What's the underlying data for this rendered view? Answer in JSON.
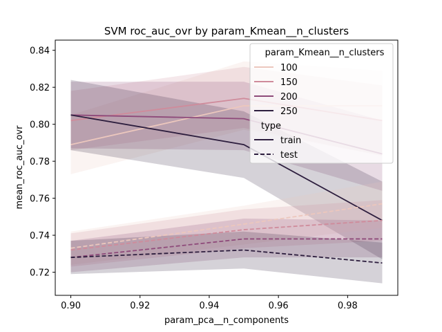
{
  "chart_data": {
    "type": "line",
    "title": "SVM roc_auc_ovr by param_Kmean__n_clusters",
    "xlabel": "param_pca__n_components",
    "ylabel": "mean_roc_auc_ovr",
    "x": [
      0.9,
      0.95,
      0.99
    ],
    "xlim": [
      0.8955,
      0.9945
    ],
    "ylim": [
      0.7075,
      0.8455
    ],
    "xticks": [
      0.9,
      0.92,
      0.94,
      0.96,
      0.98
    ],
    "xtick_labels": [
      "0.90",
      "0.92",
      "0.94",
      "0.96",
      "0.98"
    ],
    "yticks": [
      0.72,
      0.74,
      0.76,
      0.78,
      0.8,
      0.82,
      0.84
    ],
    "ytick_labels": [
      "0.72",
      "0.74",
      "0.76",
      "0.78",
      "0.80",
      "0.82",
      "0.84"
    ],
    "grid": false,
    "legend": {
      "placement": "top-right",
      "hue_title": "param_Kmean__n_clusters",
      "hue_entries": [
        {
          "label": "100",
          "color": "#ecc7bd"
        },
        {
          "label": "150",
          "color": "#cf8b9b"
        },
        {
          "label": "200",
          "color": "#8e4a7a"
        },
        {
          "label": "250",
          "color": "#2d1e3e"
        }
      ],
      "style_title": "type",
      "style_entries": [
        {
          "label": "train",
          "dash": "solid"
        },
        {
          "label": "test",
          "dash": "dashed"
        }
      ]
    },
    "series": [
      {
        "hue": "100",
        "type": "train",
        "color": "#ecc7bd",
        "values": [
          0.789,
          0.81,
          0.81
        ],
        "lower": [
          0.773,
          0.797,
          0.783
        ],
        "upper": [
          0.805,
          0.834,
          0.829
        ]
      },
      {
        "hue": "150",
        "type": "train",
        "color": "#cf8b9b",
        "values": [
          0.802,
          0.814,
          0.802
        ],
        "lower": [
          0.786,
          0.798,
          0.783
        ],
        "upper": [
          0.818,
          0.831,
          0.821
        ]
      },
      {
        "hue": "200",
        "type": "train",
        "color": "#8e4a7a",
        "values": [
          0.805,
          0.803,
          0.784
        ],
        "lower": [
          0.787,
          0.786,
          0.764
        ],
        "upper": [
          0.823,
          0.823,
          0.802
        ]
      },
      {
        "hue": "250",
        "type": "train",
        "color": "#2d1e3e",
        "values": [
          0.805,
          0.789,
          0.748
        ],
        "lower": [
          0.786,
          0.771,
          0.727
        ],
        "upper": [
          0.824,
          0.807,
          0.769
        ]
      },
      {
        "hue": "100",
        "type": "test",
        "color": "#ecc7bd",
        "values": [
          0.733,
          0.746,
          0.757
        ],
        "lower": [
          0.724,
          0.735,
          0.744
        ],
        "upper": [
          0.742,
          0.756,
          0.769
        ]
      },
      {
        "hue": "150",
        "type": "test",
        "color": "#cf8b9b",
        "values": [
          0.732,
          0.743,
          0.748
        ],
        "lower": [
          0.723,
          0.733,
          0.737
        ],
        "upper": [
          0.741,
          0.754,
          0.759
        ]
      },
      {
        "hue": "200",
        "type": "test",
        "color": "#8e4a7a",
        "values": [
          0.728,
          0.738,
          0.738
        ],
        "lower": [
          0.72,
          0.728,
          0.728
        ],
        "upper": [
          0.737,
          0.749,
          0.748
        ]
      },
      {
        "hue": "250",
        "type": "test",
        "color": "#2d1e3e",
        "values": [
          0.728,
          0.732,
          0.725
        ],
        "lower": [
          0.719,
          0.722,
          0.714
        ],
        "upper": [
          0.737,
          0.742,
          0.736
        ]
      }
    ]
  }
}
